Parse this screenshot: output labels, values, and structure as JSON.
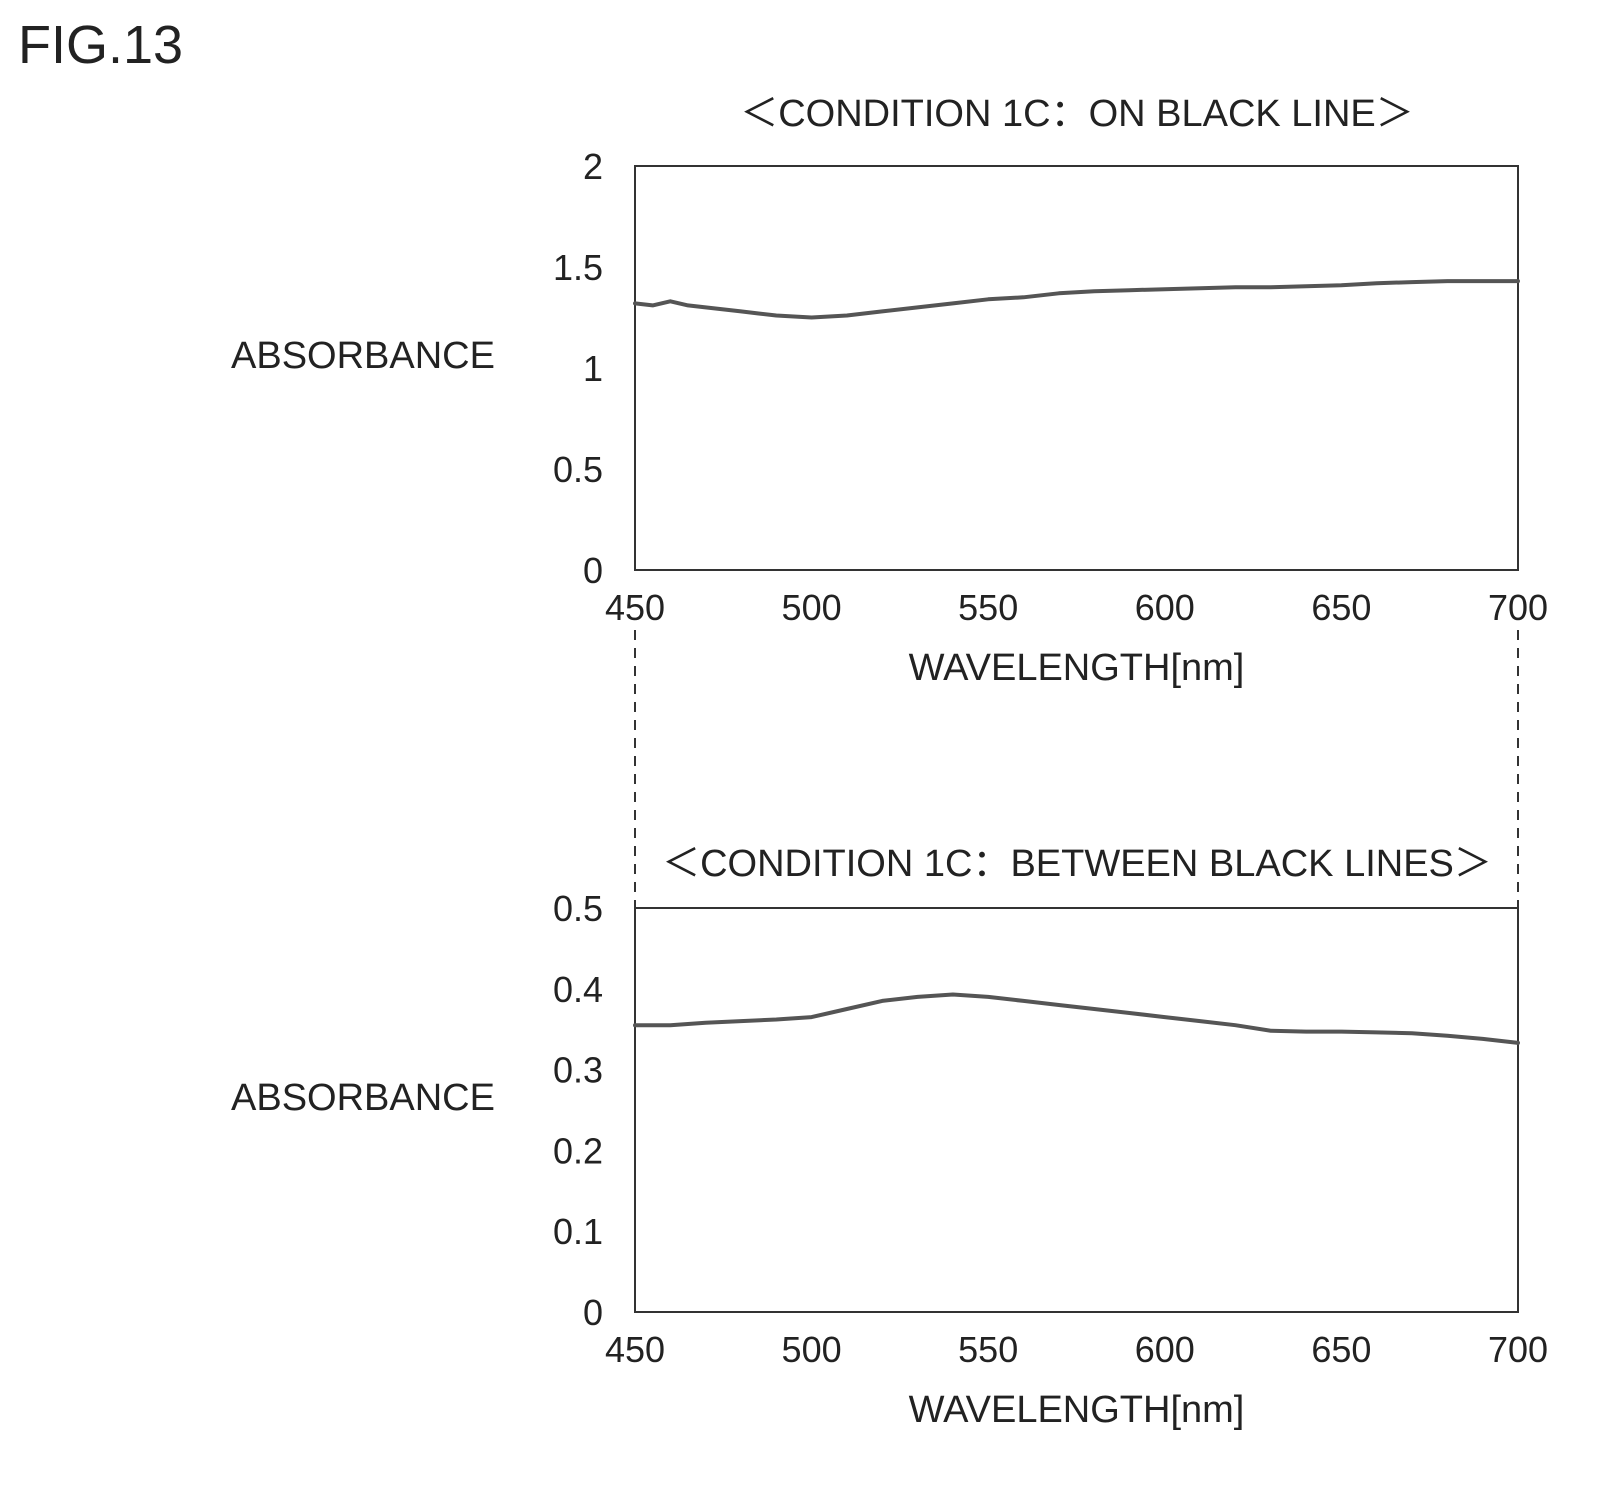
{
  "figure_label": "FIG.13",
  "chart_data": [
    {
      "type": "line",
      "title": "＜CONDITION 1C：ON BLACK LINE＞",
      "xlabel": "WAVELENGTH[nm]",
      "ylabel": "ABSORBANCE",
      "xlim": [
        450,
        700
      ],
      "ylim": [
        0,
        2
      ],
      "xticks": [
        "450",
        "500",
        "550",
        "600",
        "650",
        "700"
      ],
      "yticks": [
        "0",
        "0.5",
        "1",
        "1.5",
        "2"
      ],
      "grid": false,
      "line_color": "#555555",
      "series": [
        {
          "x": [
            450,
            455,
            460,
            465,
            470,
            475,
            480,
            485,
            490,
            495,
            500,
            510,
            520,
            530,
            540,
            550,
            560,
            570,
            580,
            590,
            600,
            610,
            620,
            630,
            640,
            650,
            660,
            670,
            680,
            690,
            700
          ],
          "values": [
            1.32,
            1.31,
            1.33,
            1.31,
            1.3,
            1.29,
            1.28,
            1.27,
            1.26,
            1.255,
            1.25,
            1.26,
            1.28,
            1.3,
            1.32,
            1.34,
            1.35,
            1.37,
            1.38,
            1.385,
            1.39,
            1.395,
            1.4,
            1.4,
            1.405,
            1.41,
            1.42,
            1.425,
            1.43,
            1.43,
            1.43
          ]
        }
      ]
    },
    {
      "type": "line",
      "title": "＜CONDITION 1C：BETWEEN BLACK LINES＞",
      "xlabel": "WAVELENGTH[nm]",
      "ylabel": "ABSORBANCE",
      "xlim": [
        450,
        700
      ],
      "ylim": [
        0,
        0.5
      ],
      "xticks": [
        "450",
        "500",
        "550",
        "600",
        "650",
        "700"
      ],
      "yticks": [
        "0",
        "0.1",
        "0.2",
        "0.3",
        "0.4",
        "0.5"
      ],
      "grid": false,
      "line_color": "#555555",
      "series": [
        {
          "x": [
            450,
            460,
            470,
            480,
            490,
            500,
            510,
            520,
            530,
            540,
            550,
            560,
            570,
            580,
            590,
            600,
            610,
            620,
            630,
            640,
            650,
            660,
            670,
            680,
            690,
            700
          ],
          "values": [
            0.355,
            0.355,
            0.358,
            0.36,
            0.362,
            0.365,
            0.375,
            0.385,
            0.39,
            0.393,
            0.39,
            0.385,
            0.38,
            0.375,
            0.37,
            0.365,
            0.36,
            0.355,
            0.348,
            0.347,
            0.347,
            0.346,
            0.345,
            0.342,
            0.338,
            0.333
          ]
        }
      ]
    }
  ]
}
